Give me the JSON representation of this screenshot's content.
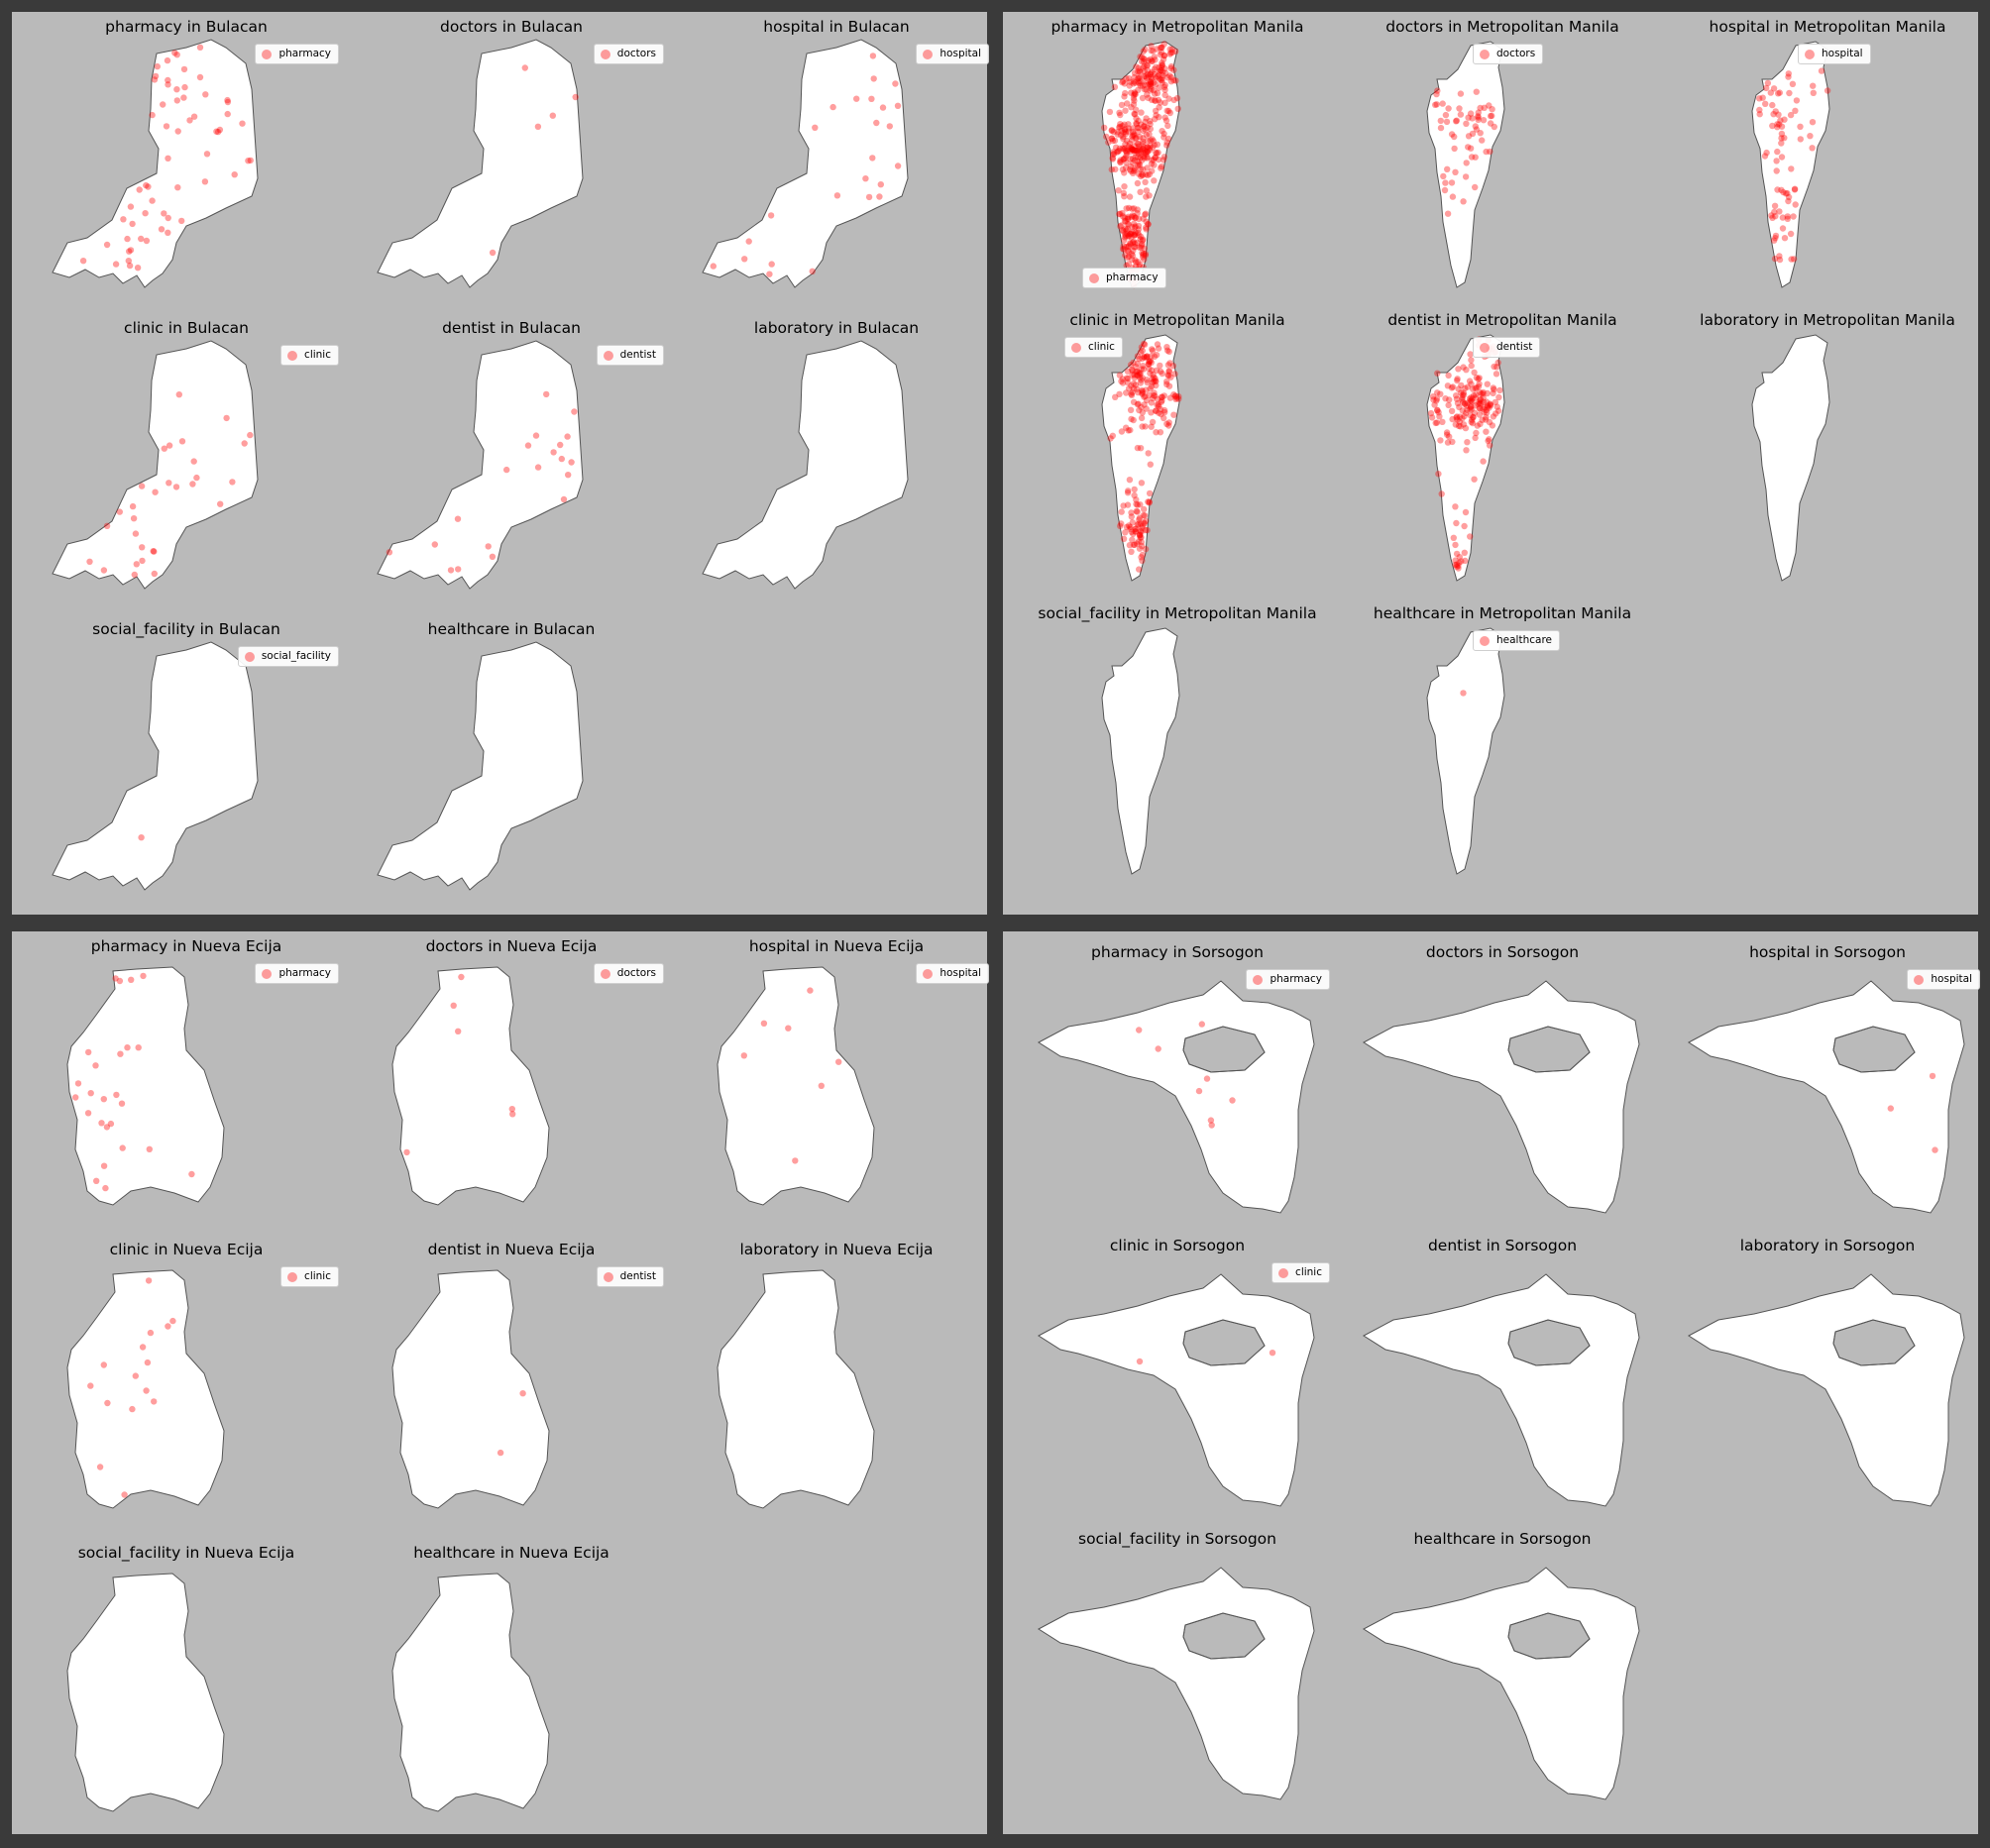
{
  "figure": {
    "marker_color": "#ff0000",
    "land_color": "#ffffff",
    "panel_background": "#bababa",
    "figure_background": "#3a3a3a"
  },
  "amenities": [
    "pharmacy",
    "doctors",
    "hospital",
    "clinic",
    "dentist",
    "laboratory",
    "social_facility",
    "healthcare"
  ],
  "panels": [
    {
      "province": "Bulacan",
      "subplots": [
        {
          "title": "pharmacy in Bulacan",
          "legend": "pharmacy",
          "legend_position": "upper-right"
        },
        {
          "title": "doctors in Bulacan",
          "legend": "doctors",
          "legend_position": "upper-right"
        },
        {
          "title": "hospital in Bulacan",
          "legend": "hospital",
          "legend_position": "upper-right"
        },
        {
          "title": "clinic in Bulacan",
          "legend": "clinic",
          "legend_position": "upper-right"
        },
        {
          "title": "dentist in Bulacan",
          "legend": "dentist",
          "legend_position": "upper-right"
        },
        {
          "title": "laboratory in Bulacan",
          "legend": null
        },
        {
          "title": "social_facility in Bulacan",
          "legend": "social_facility",
          "legend_position": "upper-right"
        },
        {
          "title": "healthcare in Bulacan",
          "legend": null
        }
      ]
    },
    {
      "province": "Metropolitan Manila",
      "subplots": [
        {
          "title": "pharmacy in Metropolitan Manila",
          "legend": "pharmacy",
          "legend_position": "lower-left"
        },
        {
          "title": "doctors in Metropolitan Manila",
          "legend": "doctors",
          "legend_position": "upper-center"
        },
        {
          "title": "hospital in Metropolitan Manila",
          "legend": "hospital",
          "legend_position": "upper-center"
        },
        {
          "title": "clinic in Metropolitan Manila",
          "legend": "clinic",
          "legend_position": "upper-left"
        },
        {
          "title": "dentist in Metropolitan Manila",
          "legend": "dentist",
          "legend_position": "upper-center"
        },
        {
          "title": "laboratory in Metropolitan Manila",
          "legend": null
        },
        {
          "title": "social_facility in Metropolitan Manila",
          "legend": null
        },
        {
          "title": "healthcare in Metropolitan Manila",
          "legend": "healthcare",
          "legend_position": "upper-center"
        }
      ]
    },
    {
      "province": "Nueva Ecija",
      "subplots": [
        {
          "title": "pharmacy in Nueva Ecija",
          "legend": "pharmacy",
          "legend_position": "upper-right"
        },
        {
          "title": "doctors in Nueva Ecija",
          "legend": "doctors",
          "legend_position": "upper-right"
        },
        {
          "title": "hospital in Nueva Ecija",
          "legend": "hospital",
          "legend_position": "upper-right"
        },
        {
          "title": "clinic in Nueva Ecija",
          "legend": "clinic",
          "legend_position": "upper-right"
        },
        {
          "title": "dentist in Nueva Ecija",
          "legend": "dentist",
          "legend_position": "upper-right"
        },
        {
          "title": "laboratory in Nueva Ecija",
          "legend": null
        },
        {
          "title": "social_facility in Nueva Ecija",
          "legend": null
        },
        {
          "title": "healthcare in Nueva Ecija",
          "legend": null
        }
      ]
    },
    {
      "province": "Sorsogon",
      "subplots": [
        {
          "title": "pharmacy in Sorsogon",
          "legend": "pharmacy",
          "legend_position": "upper-right"
        },
        {
          "title": "doctors in Sorsogon",
          "legend": null
        },
        {
          "title": "hospital in Sorsogon",
          "legend": "hospital",
          "legend_position": "upper-right"
        },
        {
          "title": "clinic in Sorsogon",
          "legend": "clinic",
          "legend_position": "upper-right"
        },
        {
          "title": "dentist in Sorsogon",
          "legend": null
        },
        {
          "title": "laboratory in Sorsogon",
          "legend": null
        },
        {
          "title": "social_facility in Sorsogon",
          "legend": null
        },
        {
          "title": "healthcare in Sorsogon",
          "legend": null
        }
      ]
    }
  ],
  "point_counts": {
    "Bulacan": {
      "pharmacy": 60,
      "doctors": 5,
      "hospital": 25,
      "clinic": 30,
      "dentist": 20,
      "laboratory": 0,
      "social_facility": 1,
      "healthcare": 0
    },
    "Metropolitan Manila": {
      "pharmacy": 500,
      "doctors": 60,
      "hospital": 80,
      "clinic": 250,
      "dentist": 200,
      "laboratory": 0,
      "social_facility": 0,
      "healthcare": 1
    },
    "Nueva Ecija": {
      "pharmacy": 25,
      "doctors": 6,
      "hospital": 7,
      "clinic": 15,
      "dentist": 2,
      "laboratory": 0,
      "social_facility": 0,
      "healthcare": 0
    },
    "Sorsogon": {
      "pharmacy": 8,
      "doctors": 0,
      "hospital": 3,
      "clinic": 2,
      "dentist": 0,
      "laboratory": 0,
      "social_facility": 0,
      "healthcare": 0
    }
  }
}
